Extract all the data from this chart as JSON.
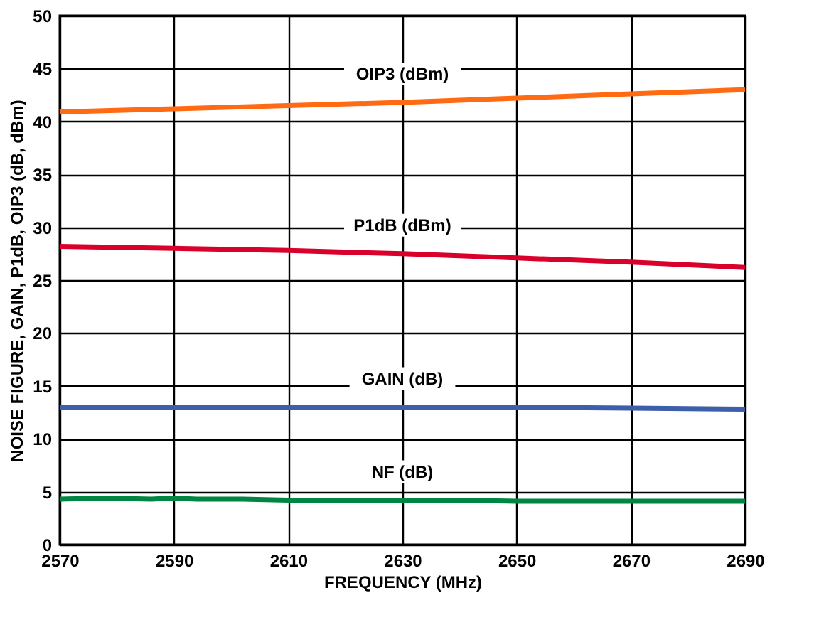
{
  "chart_data": {
    "type": "line",
    "xlabel": "FREQUENCY (MHz)",
    "ylabel": "NOISE FIGURE, GAIN, P1dB, OIP3 (dB, dBm)",
    "xlim": [
      2570,
      2690
    ],
    "xticks": [
      2570,
      2590,
      2610,
      2630,
      2650,
      2670,
      2690
    ],
    "ylim": [
      0,
      50
    ],
    "yticks": [
      0,
      5,
      10,
      15,
      20,
      25,
      30,
      35,
      40,
      45,
      50
    ],
    "grid": true,
    "legend": false,
    "line_style": "solid",
    "marker": "none",
    "series": [
      {
        "name": "OIP3 (dBm)",
        "color": "#ff6a13",
        "x": [
          2570,
          2590,
          2610,
          2630,
          2650,
          2670,
          2690
        ],
        "values": [
          40.9,
          41.2,
          41.5,
          41.8,
          42.2,
          42.6,
          43.0
        ]
      },
      {
        "name": "P1dB (dBm)",
        "color": "#d9002b",
        "x": [
          2570,
          2590,
          2610,
          2630,
          2650,
          2670,
          2690
        ],
        "values": [
          28.2,
          28.0,
          27.8,
          27.5,
          27.1,
          26.7,
          26.2
        ]
      },
      {
        "name": "GAIN (dB)",
        "color": "#3d5ea8",
        "x": [
          2570,
          2590,
          2610,
          2630,
          2650,
          2670,
          2690
        ],
        "values": [
          13.0,
          13.0,
          13.0,
          13.0,
          13.0,
          12.9,
          12.8
        ]
      },
      {
        "name": "NF (dB)",
        "color": "#008542",
        "x": [
          2570,
          2578,
          2586,
          2590,
          2594,
          2602,
          2610,
          2620,
          2630,
          2640,
          2650,
          2660,
          2670,
          2676,
          2682,
          2690
        ],
        "values": [
          4.3,
          4.4,
          4.3,
          4.4,
          4.3,
          4.3,
          4.2,
          4.2,
          4.2,
          4.2,
          4.1,
          4.1,
          4.1,
          4.1,
          4.1,
          4.1
        ]
      }
    ]
  }
}
